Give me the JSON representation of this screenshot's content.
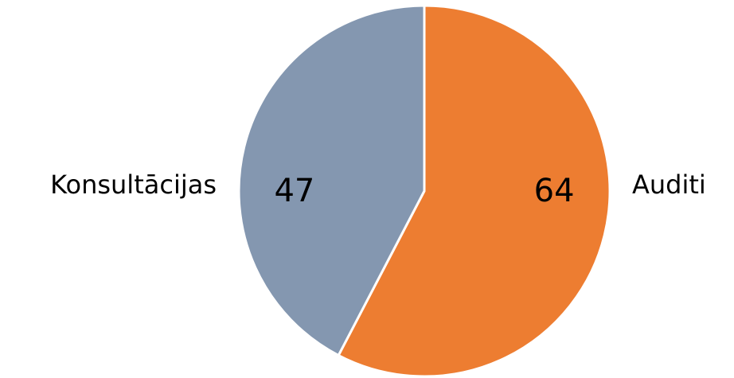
{
  "chart_data": {
    "type": "pie",
    "categories": [
      "Auditi",
      "Konsultācijas"
    ],
    "values": [
      64,
      47
    ],
    "colors": [
      "#ED7D31",
      "#8497B0"
    ]
  }
}
